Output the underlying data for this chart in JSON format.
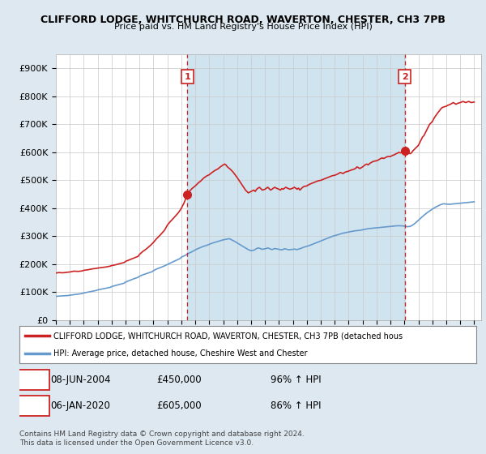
{
  "title1": "CLIFFORD LODGE, WHITCHURCH ROAD, WAVERTON, CHESTER, CH3 7PB",
  "title2": "Price paid vs. HM Land Registry's House Price Index (HPI)",
  "ylim": [
    0,
    950000
  ],
  "yticks": [
    0,
    100000,
    200000,
    300000,
    400000,
    500000,
    600000,
    700000,
    800000,
    900000
  ],
  "ytick_labels": [
    "£0",
    "£100K",
    "£200K",
    "£300K",
    "£400K",
    "£500K",
    "£600K",
    "£700K",
    "£800K",
    "£900K"
  ],
  "xlim_start": 1995.0,
  "xlim_end": 2025.5,
  "background_color": "#dde8f0",
  "plot_background": "#ffffff",
  "shaded_region_color": "#d0e4f0",
  "red_line_color": "#cc2222",
  "blue_line_color": "#6699cc",
  "marker_color": "#cc2222",
  "dashed_line_color": "#cc2222",
  "sale1_x": 2004.44,
  "sale1_y": 450000,
  "sale1_label": "1",
  "sale1_date": "08-JUN-2004",
  "sale1_price": "£450,000",
  "sale1_hpi": "96% ↑ HPI",
  "sale2_x": 2020.02,
  "sale2_y": 605000,
  "sale2_label": "2",
  "sale2_date": "06-JAN-2020",
  "sale2_price": "£605,000",
  "sale2_hpi": "86% ↑ HPI",
  "legend_line1": "CLIFFORD LODGE, WHITCHURCH ROAD, WAVERTON, CHESTER, CH3 7PB (detached hous",
  "legend_line2": "HPI: Average price, detached house, Cheshire West and Chester",
  "footer1": "Contains HM Land Registry data © Crown copyright and database right 2024.",
  "footer2": "This data is licensed under the Open Government Licence v3.0.",
  "red_points": [
    [
      1995.0,
      168000
    ],
    [
      1995.2,
      170000
    ],
    [
      1995.5,
      169000
    ],
    [
      1995.8,
      171000
    ],
    [
      1996.0,
      172000
    ],
    [
      1996.3,
      175000
    ],
    [
      1996.6,
      174000
    ],
    [
      1996.9,
      176000
    ],
    [
      1997.0,
      178000
    ],
    [
      1997.3,
      180000
    ],
    [
      1997.6,
      183000
    ],
    [
      1997.9,
      185000
    ],
    [
      1998.0,
      186000
    ],
    [
      1998.3,
      188000
    ],
    [
      1998.6,
      190000
    ],
    [
      1998.9,
      193000
    ],
    [
      1999.0,
      195000
    ],
    [
      1999.3,
      198000
    ],
    [
      1999.6,
      202000
    ],
    [
      1999.9,
      206000
    ],
    [
      2000.0,
      210000
    ],
    [
      2000.3,
      216000
    ],
    [
      2000.6,
      222000
    ],
    [
      2000.9,
      228000
    ],
    [
      2001.0,
      235000
    ],
    [
      2001.2,
      244000
    ],
    [
      2001.5,
      255000
    ],
    [
      2001.8,
      268000
    ],
    [
      2002.0,
      278000
    ],
    [
      2002.2,
      290000
    ],
    [
      2002.5,
      305000
    ],
    [
      2002.8,
      322000
    ],
    [
      2003.0,
      340000
    ],
    [
      2003.2,
      352000
    ],
    [
      2003.5,
      368000
    ],
    [
      2003.8,
      385000
    ],
    [
      2004.0,
      400000
    ],
    [
      2004.2,
      420000
    ],
    [
      2004.44,
      450000
    ],
    [
      2004.6,
      462000
    ],
    [
      2004.8,
      472000
    ],
    [
      2005.0,
      480000
    ],
    [
      2005.2,
      490000
    ],
    [
      2005.4,
      498000
    ],
    [
      2005.6,
      508000
    ],
    [
      2005.8,
      515000
    ],
    [
      2006.0,
      520000
    ],
    [
      2006.2,
      528000
    ],
    [
      2006.4,
      535000
    ],
    [
      2006.6,
      540000
    ],
    [
      2006.8,
      548000
    ],
    [
      2007.0,
      555000
    ],
    [
      2007.1,
      558000
    ],
    [
      2007.2,
      555000
    ],
    [
      2007.3,
      548000
    ],
    [
      2007.5,
      540000
    ],
    [
      2007.7,
      530000
    ],
    [
      2008.0,
      510000
    ],
    [
      2008.2,
      495000
    ],
    [
      2008.4,
      480000
    ],
    [
      2008.6,
      465000
    ],
    [
      2008.8,
      455000
    ],
    [
      2009.0,
      460000
    ],
    [
      2009.2,
      465000
    ],
    [
      2009.3,
      460000
    ],
    [
      2009.4,
      468000
    ],
    [
      2009.5,
      472000
    ],
    [
      2009.6,
      475000
    ],
    [
      2009.7,
      470000
    ],
    [
      2009.8,
      465000
    ],
    [
      2010.0,
      468000
    ],
    [
      2010.1,
      472000
    ],
    [
      2010.2,
      475000
    ],
    [
      2010.3,
      470000
    ],
    [
      2010.4,
      465000
    ],
    [
      2010.5,
      468000
    ],
    [
      2010.6,
      472000
    ],
    [
      2010.7,
      475000
    ],
    [
      2010.8,
      472000
    ],
    [
      2011.0,
      468000
    ],
    [
      2011.1,
      465000
    ],
    [
      2011.2,
      470000
    ],
    [
      2011.3,
      468000
    ],
    [
      2011.4,
      472000
    ],
    [
      2011.5,
      475000
    ],
    [
      2011.6,
      472000
    ],
    [
      2011.7,
      470000
    ],
    [
      2011.8,
      468000
    ],
    [
      2012.0,
      472000
    ],
    [
      2012.1,
      475000
    ],
    [
      2012.2,
      472000
    ],
    [
      2012.3,
      468000
    ],
    [
      2012.4,
      472000
    ],
    [
      2012.5,
      465000
    ],
    [
      2012.6,
      470000
    ],
    [
      2012.7,
      475000
    ],
    [
      2012.8,
      478000
    ],
    [
      2013.0,
      480000
    ],
    [
      2013.1,
      483000
    ],
    [
      2013.2,
      486000
    ],
    [
      2013.4,
      490000
    ],
    [
      2013.6,
      494000
    ],
    [
      2013.8,
      498000
    ],
    [
      2014.0,
      500000
    ],
    [
      2014.2,
      504000
    ],
    [
      2014.4,
      508000
    ],
    [
      2014.6,
      512000
    ],
    [
      2014.8,
      516000
    ],
    [
      2015.0,
      518000
    ],
    [
      2015.1,
      520000
    ],
    [
      2015.2,
      522000
    ],
    [
      2015.3,
      525000
    ],
    [
      2015.4,
      528000
    ],
    [
      2015.5,
      526000
    ],
    [
      2015.6,
      524000
    ],
    [
      2015.7,
      528000
    ],
    [
      2015.8,
      530000
    ],
    [
      2016.0,
      533000
    ],
    [
      2016.2,
      537000
    ],
    [
      2016.4,
      540000
    ],
    [
      2016.5,
      543000
    ],
    [
      2016.6,
      548000
    ],
    [
      2016.7,
      545000
    ],
    [
      2016.8,
      542000
    ],
    [
      2017.0,
      548000
    ],
    [
      2017.1,
      552000
    ],
    [
      2017.2,
      556000
    ],
    [
      2017.3,
      558000
    ],
    [
      2017.4,
      555000
    ],
    [
      2017.5,
      560000
    ],
    [
      2017.6,
      563000
    ],
    [
      2017.7,
      566000
    ],
    [
      2017.8,
      568000
    ],
    [
      2018.0,
      570000
    ],
    [
      2018.1,
      572000
    ],
    [
      2018.2,
      575000
    ],
    [
      2018.3,
      578000
    ],
    [
      2018.4,
      580000
    ],
    [
      2018.5,
      578000
    ],
    [
      2018.6,
      580000
    ],
    [
      2018.7,
      583000
    ],
    [
      2018.8,
      585000
    ],
    [
      2019.0,
      585000
    ],
    [
      2019.1,
      588000
    ],
    [
      2019.2,
      590000
    ],
    [
      2019.3,
      592000
    ],
    [
      2019.4,
      595000
    ],
    [
      2019.5,
      597000
    ],
    [
      2019.6,
      600000
    ],
    [
      2019.7,
      598000
    ],
    [
      2019.8,
      600000
    ],
    [
      2020.02,
      605000
    ],
    [
      2020.2,
      600000
    ],
    [
      2020.4,
      595000
    ],
    [
      2020.5,
      598000
    ],
    [
      2020.6,
      605000
    ],
    [
      2020.8,
      615000
    ],
    [
      2021.0,
      625000
    ],
    [
      2021.1,
      635000
    ],
    [
      2021.2,
      645000
    ],
    [
      2021.3,
      655000
    ],
    [
      2021.4,
      660000
    ],
    [
      2021.5,
      670000
    ],
    [
      2021.6,
      680000
    ],
    [
      2021.7,
      690000
    ],
    [
      2021.8,
      700000
    ],
    [
      2022.0,
      710000
    ],
    [
      2022.1,
      720000
    ],
    [
      2022.2,
      728000
    ],
    [
      2022.3,
      735000
    ],
    [
      2022.4,
      742000
    ],
    [
      2022.5,
      748000
    ],
    [
      2022.6,
      755000
    ],
    [
      2022.7,
      760000
    ],
    [
      2022.8,
      762000
    ],
    [
      2023.0,
      765000
    ],
    [
      2023.1,
      768000
    ],
    [
      2023.2,
      770000
    ],
    [
      2023.3,
      772000
    ],
    [
      2023.4,
      775000
    ],
    [
      2023.5,
      778000
    ],
    [
      2023.6,
      775000
    ],
    [
      2023.7,
      772000
    ],
    [
      2023.8,
      775000
    ],
    [
      2024.0,
      778000
    ],
    [
      2024.1,
      780000
    ],
    [
      2024.2,
      782000
    ],
    [
      2024.3,
      780000
    ],
    [
      2024.4,
      778000
    ],
    [
      2024.5,
      780000
    ],
    [
      2024.6,
      782000
    ],
    [
      2024.7,
      780000
    ],
    [
      2024.8,
      778000
    ],
    [
      2025.0,
      780000
    ]
  ],
  "blue_points": [
    [
      1995.0,
      85000
    ],
    [
      1995.3,
      86000
    ],
    [
      1995.6,
      87000
    ],
    [
      1995.9,
      88000
    ],
    [
      1996.0,
      89000
    ],
    [
      1996.3,
      91000
    ],
    [
      1996.6,
      93000
    ],
    [
      1996.9,
      95000
    ],
    [
      1997.0,
      97000
    ],
    [
      1997.3,
      100000
    ],
    [
      1997.6,
      103000
    ],
    [
      1997.9,
      106000
    ],
    [
      1998.0,
      108000
    ],
    [
      1998.3,
      111000
    ],
    [
      1998.6,
      114000
    ],
    [
      1998.9,
      117000
    ],
    [
      1999.0,
      120000
    ],
    [
      1999.3,
      124000
    ],
    [
      1999.6,
      128000
    ],
    [
      1999.9,
      132000
    ],
    [
      2000.0,
      136000
    ],
    [
      2000.3,
      142000
    ],
    [
      2000.6,
      148000
    ],
    [
      2000.9,
      153000
    ],
    [
      2001.0,
      157000
    ],
    [
      2001.3,
      163000
    ],
    [
      2001.6,
      168000
    ],
    [
      2001.9,
      173000
    ],
    [
      2002.0,
      177000
    ],
    [
      2002.2,
      182000
    ],
    [
      2002.5,
      188000
    ],
    [
      2002.8,
      194000
    ],
    [
      2003.0,
      199000
    ],
    [
      2003.3,
      206000
    ],
    [
      2003.6,
      213000
    ],
    [
      2003.9,
      220000
    ],
    [
      2004.0,
      225000
    ],
    [
      2004.3,
      232000
    ],
    [
      2004.44,
      237000
    ],
    [
      2004.7,
      243000
    ],
    [
      2004.9,
      248000
    ],
    [
      2005.0,
      251000
    ],
    [
      2005.2,
      256000
    ],
    [
      2005.4,
      260000
    ],
    [
      2005.6,
      264000
    ],
    [
      2005.8,
      267000
    ],
    [
      2006.0,
      271000
    ],
    [
      2006.2,
      275000
    ],
    [
      2006.4,
      278000
    ],
    [
      2006.6,
      281000
    ],
    [
      2006.8,
      284000
    ],
    [
      2007.0,
      287000
    ],
    [
      2007.2,
      289000
    ],
    [
      2007.4,
      291000
    ],
    [
      2007.5,
      290000
    ],
    [
      2007.6,
      287000
    ],
    [
      2007.8,
      282000
    ],
    [
      2008.0,
      276000
    ],
    [
      2008.2,
      270000
    ],
    [
      2008.4,
      264000
    ],
    [
      2008.6,
      258000
    ],
    [
      2008.8,
      252000
    ],
    [
      2009.0,
      248000
    ],
    [
      2009.2,
      250000
    ],
    [
      2009.3,
      253000
    ],
    [
      2009.4,
      256000
    ],
    [
      2009.5,
      258000
    ],
    [
      2009.6,
      257000
    ],
    [
      2009.7,
      255000
    ],
    [
      2009.8,
      253000
    ],
    [
      2010.0,
      255000
    ],
    [
      2010.2,
      258000
    ],
    [
      2010.3,
      256000
    ],
    [
      2010.4,
      254000
    ],
    [
      2010.5,
      252000
    ],
    [
      2010.6,
      254000
    ],
    [
      2010.7,
      256000
    ],
    [
      2010.8,
      255000
    ],
    [
      2011.0,
      253000
    ],
    [
      2011.2,
      251000
    ],
    [
      2011.3,
      253000
    ],
    [
      2011.4,
      255000
    ],
    [
      2011.5,
      254000
    ],
    [
      2011.6,
      253000
    ],
    [
      2011.7,
      251000
    ],
    [
      2011.8,
      252000
    ],
    [
      2012.0,
      253000
    ],
    [
      2012.1,
      254000
    ],
    [
      2012.2,
      253000
    ],
    [
      2012.3,
      252000
    ],
    [
      2012.4,
      254000
    ],
    [
      2012.5,
      255000
    ],
    [
      2012.6,
      257000
    ],
    [
      2012.7,
      259000
    ],
    [
      2012.8,
      261000
    ],
    [
      2013.0,
      264000
    ],
    [
      2013.2,
      267000
    ],
    [
      2013.4,
      271000
    ],
    [
      2013.6,
      275000
    ],
    [
      2013.8,
      279000
    ],
    [
      2014.0,
      283000
    ],
    [
      2014.2,
      287000
    ],
    [
      2014.4,
      291000
    ],
    [
      2014.6,
      295000
    ],
    [
      2014.8,
      299000
    ],
    [
      2015.0,
      302000
    ],
    [
      2015.2,
      305000
    ],
    [
      2015.4,
      308000
    ],
    [
      2015.6,
      311000
    ],
    [
      2015.8,
      313000
    ],
    [
      2016.0,
      315000
    ],
    [
      2016.2,
      317000
    ],
    [
      2016.4,
      319000
    ],
    [
      2016.6,
      320000
    ],
    [
      2016.8,
      321000
    ],
    [
      2017.0,
      323000
    ],
    [
      2017.2,
      325000
    ],
    [
      2017.4,
      327000
    ],
    [
      2017.6,
      328000
    ],
    [
      2017.8,
      329000
    ],
    [
      2018.0,
      330000
    ],
    [
      2018.2,
      331000
    ],
    [
      2018.4,
      332000
    ],
    [
      2018.6,
      333000
    ],
    [
      2018.8,
      334000
    ],
    [
      2019.0,
      335000
    ],
    [
      2019.2,
      336000
    ],
    [
      2019.4,
      337000
    ],
    [
      2019.6,
      337500
    ],
    [
      2019.8,
      337000
    ],
    [
      2020.02,
      336000
    ],
    [
      2020.2,
      334000
    ],
    [
      2020.4,
      335000
    ],
    [
      2020.6,
      340000
    ],
    [
      2020.8,
      348000
    ],
    [
      2021.0,
      357000
    ],
    [
      2021.2,
      366000
    ],
    [
      2021.4,
      375000
    ],
    [
      2021.6,
      383000
    ],
    [
      2021.8,
      390000
    ],
    [
      2022.0,
      397000
    ],
    [
      2022.2,
      403000
    ],
    [
      2022.4,
      408000
    ],
    [
      2022.6,
      413000
    ],
    [
      2022.8,
      416000
    ],
    [
      2023.0,
      415000
    ],
    [
      2023.2,
      414000
    ],
    [
      2023.4,
      415000
    ],
    [
      2023.6,
      416000
    ],
    [
      2023.8,
      417000
    ],
    [
      2024.0,
      418000
    ],
    [
      2024.2,
      419000
    ],
    [
      2024.4,
      420000
    ],
    [
      2024.6,
      421000
    ],
    [
      2024.8,
      422000
    ],
    [
      2025.0,
      423000
    ]
  ]
}
